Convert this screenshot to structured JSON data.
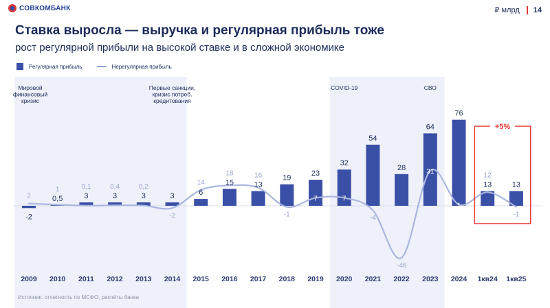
{
  "brand": {
    "name": "СОВКОМБАНК",
    "color": "#d83a3a"
  },
  "header": {
    "unit": "₽ млрд",
    "page_number": "14"
  },
  "title": "Ставка выросла — выручка и регулярная прибыль тоже",
  "subtitle": "рост регулярной прибыли на высокой ставке и в сложной экономике",
  "source": "Источник: отчетность по МСФО, расчёты банка",
  "chart_data": {
    "type": "bar",
    "categories": [
      "2009",
      "2010",
      "2011",
      "2012",
      "2013",
      "2014",
      "2015",
      "2016",
      "2017",
      "2018",
      "2019",
      "2020",
      "2021",
      "2022",
      "2023",
      "2024",
      "1кв24",
      "1кв25"
    ],
    "series": [
      {
        "name": "Регулярная прибыль",
        "kind": "bar",
        "color": "#3a4fa6",
        "values": [
          -2,
          0.5,
          3,
          3,
          3,
          3,
          6,
          15,
          13,
          19,
          23,
          32,
          54,
          28,
          64,
          76,
          13,
          13
        ],
        "labels": [
          "-2",
          "0,5",
          "3",
          "3",
          "3",
          "3",
          "6",
          "15",
          "13",
          "19",
          "23",
          "32",
          "54",
          "28",
          "64",
          "76",
          "13",
          "13"
        ]
      },
      {
        "name": "Нерегулярная прибыль",
        "kind": "line",
        "color": "#aab6e0",
        "values": [
          2,
          1,
          0.1,
          0.4,
          0.2,
          -2,
          14,
          18,
          16,
          -1,
          7,
          7,
          -4,
          -46,
          31,
          1,
          12,
          -1
        ],
        "labels": [
          "2",
          "1",
          "0,1",
          "0,4",
          "0,2",
          "-2",
          "14",
          "18",
          "16",
          "-1",
          "7",
          "7",
          "-4",
          "-46",
          "31",
          "1",
          "12",
          "-1"
        ]
      }
    ],
    "annotations": [
      {
        "category": "2009",
        "text": [
          "Мировой",
          "финансовый",
          "кризис"
        ]
      },
      {
        "category": "2014",
        "text": [
          "Первые санкции,",
          "кризис потреб.",
          "кредитования"
        ]
      },
      {
        "category": "2020",
        "text": [
          "COVID-19"
        ]
      },
      {
        "category": "2023",
        "text": [
          "СВО"
        ]
      }
    ],
    "highlight": {
      "from": "1кв24",
      "to": "1кв25",
      "label": "+5%",
      "color": "#e53935"
    },
    "shaded_bands": [
      [
        "2009",
        "2014"
      ],
      [
        "2020",
        "2023"
      ]
    ],
    "ylim": [
      -60,
      85
    ]
  }
}
